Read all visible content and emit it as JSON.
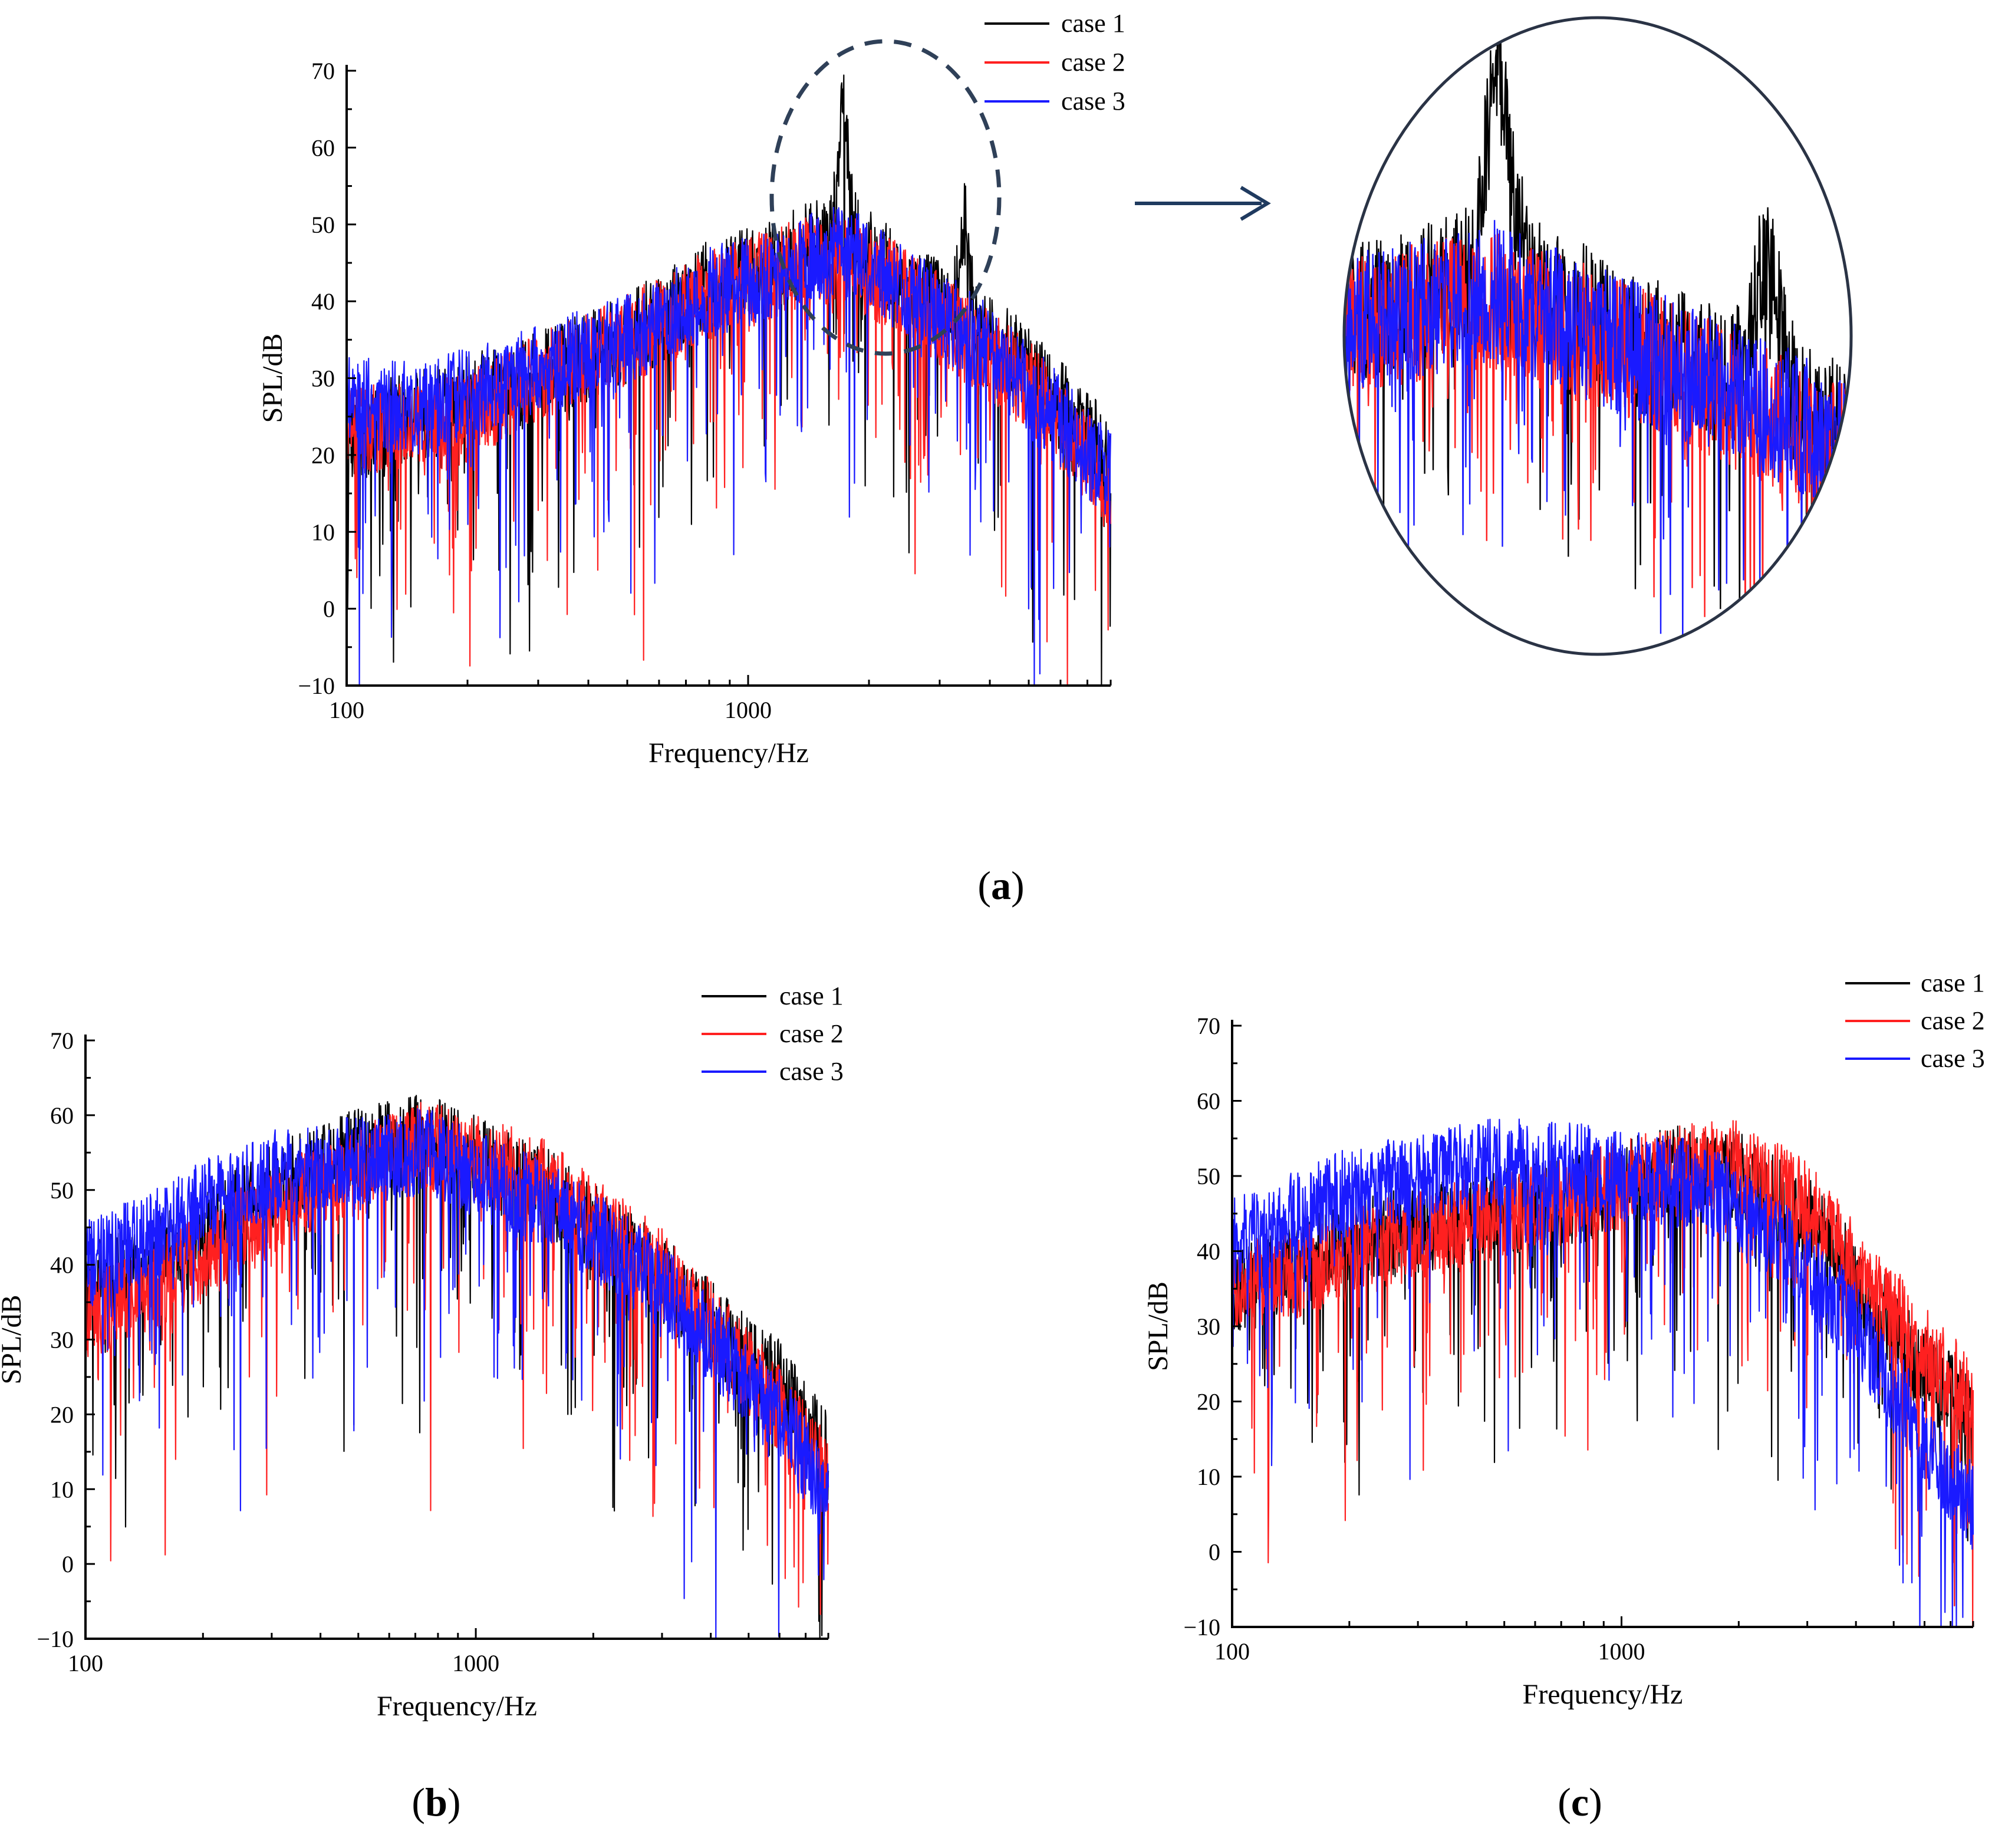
{
  "figure": {
    "panels": [
      {
        "id": "a",
        "label_open": "(",
        "letter": "a",
        "label_close": ")"
      },
      {
        "id": "b",
        "label_open": "(",
        "letter": "b",
        "label_close": ")"
      },
      {
        "id": "c",
        "label_open": "(",
        "letter": "c",
        "label_close": ")"
      }
    ],
    "zoom_arrow_icon": "arrow-right-icon"
  },
  "chart_data": [
    {
      "id": "a",
      "type": "line",
      "xscale": "log",
      "xlabel": "Frequency/Hz",
      "ylabel": "SPL/dB",
      "xlim": [
        100,
        8000
      ],
      "ylim": [
        -10,
        70
      ],
      "xticks": [
        100,
        1000
      ],
      "xtick_labels": [
        "100",
        "1000"
      ],
      "yticks": [
        -10,
        0,
        10,
        20,
        30,
        40,
        50,
        60,
        70
      ],
      "ytick_labels": [
        "−10",
        "0",
        "10",
        "20",
        "30",
        "40",
        "50",
        "60",
        "70"
      ],
      "legend_position": "top-right",
      "annotation": "dashed ellipse marks the peak region (approx. 1200–4000 Hz); enlarged view shown to the right",
      "series": [
        {
          "name": "case 1",
          "color": "#000000",
          "x": [
            100,
            150,
            200,
            300,
            500,
            800,
            1200,
            1700,
            2500,
            3500,
            5000,
            8000
          ],
          "y": [
            23,
            25,
            27,
            30,
            35,
            42,
            45,
            49,
            42,
            37,
            31,
            19
          ],
          "peaks": [
            {
              "x": 1720,
              "y": 69
            },
            {
              "x": 3450,
              "y": 52
            }
          ]
        },
        {
          "name": "case 2",
          "color": "#ff2020",
          "x": [
            100,
            150,
            200,
            300,
            500,
            800,
            1200,
            1700,
            2500,
            3500,
            5000,
            8000
          ],
          "y": [
            24,
            23,
            25,
            30,
            35,
            41,
            44,
            46,
            41,
            35,
            29,
            16
          ]
        },
        {
          "name": "case 3",
          "color": "#1a1aff",
          "x": [
            100,
            150,
            200,
            300,
            500,
            800,
            1200,
            1700,
            2500,
            3500,
            5000,
            8000
          ],
          "y": [
            27,
            26,
            28,
            31,
            35,
            41,
            44,
            47,
            41,
            36,
            29,
            17
          ]
        }
      ]
    },
    {
      "id": "b",
      "type": "line",
      "xscale": "log",
      "xlabel": "Frequency/Hz",
      "ylabel": "SPL/dB",
      "xlim": [
        100,
        8000
      ],
      "ylim": [
        -10,
        70
      ],
      "xticks": [
        100,
        1000
      ],
      "xtick_labels": [
        "100",
        "1000"
      ],
      "yticks": [
        -10,
        0,
        10,
        20,
        30,
        40,
        50,
        60,
        70
      ],
      "ytick_labels": [
        "−10",
        "0",
        "10",
        "20",
        "30",
        "40",
        "50",
        "60",
        "70"
      ],
      "legend_position": "top-right",
      "series": [
        {
          "name": "case 1",
          "color": "#000000",
          "x": [
            100,
            150,
            200,
            300,
            500,
            750,
            1000,
            1500,
            2000,
            3000,
            4000,
            5000,
            6000,
            8000
          ],
          "y": [
            37,
            40,
            44,
            50,
            55,
            57,
            54,
            50,
            45,
            38,
            32,
            27,
            24,
            14
          ]
        },
        {
          "name": "case 2",
          "color": "#ff2020",
          "x": [
            100,
            150,
            200,
            300,
            500,
            750,
            1000,
            1500,
            2000,
            3000,
            4000,
            5000,
            6000,
            8000
          ],
          "y": [
            33,
            37,
            41,
            47,
            53,
            56,
            54,
            51,
            46,
            39,
            32,
            26,
            21,
            11
          ]
        },
        {
          "name": "case 3",
          "color": "#1a1aff",
          "x": [
            100,
            150,
            200,
            300,
            500,
            750,
            1000,
            1500,
            2000,
            3000,
            4000,
            5000,
            6000,
            8000
          ],
          "y": [
            40,
            44,
            48,
            52,
            54,
            55,
            52,
            48,
            44,
            37,
            30,
            24,
            20,
            9
          ]
        }
      ]
    },
    {
      "id": "c",
      "type": "line",
      "xscale": "log",
      "xlabel": "Frequency/Hz",
      "ylabel": "SPL/dB",
      "xlim": [
        100,
        8000
      ],
      "ylim": [
        -10,
        70
      ],
      "xticks": [
        100,
        1000
      ],
      "xtick_labels": [
        "100",
        "1000"
      ],
      "yticks": [
        -10,
        0,
        10,
        20,
        30,
        40,
        50,
        60,
        70
      ],
      "ytick_labels": [
        "−10",
        "0",
        "10",
        "20",
        "30",
        "40",
        "50",
        "60",
        "70"
      ],
      "legend_position": "top-right",
      "series": [
        {
          "name": "case 1",
          "color": "#000000",
          "x": [
            100,
            150,
            200,
            300,
            500,
            800,
            1000,
            1500,
            2000,
            3000,
            4000,
            6000,
            8000
          ],
          "y": [
            35,
            38,
            41,
            43,
            45,
            47,
            49,
            51,
            50,
            44,
            36,
            24,
            18
          ]
        },
        {
          "name": "case 2",
          "color": "#ff2020",
          "x": [
            100,
            150,
            200,
            300,
            500,
            800,
            1000,
            1500,
            2000,
            3000,
            4000,
            6000,
            8000
          ],
          "y": [
            35,
            37,
            40,
            42,
            45,
            47,
            49,
            51,
            52,
            46,
            38,
            27,
            20
          ]
        },
        {
          "name": "case 3",
          "color": "#1a1aff",
          "x": [
            100,
            150,
            200,
            300,
            500,
            800,
            1000,
            1500,
            2000,
            3000,
            4000,
            6000,
            8000
          ],
          "y": [
            41,
            45,
            48,
            50,
            52,
            51,
            50,
            49,
            46,
            38,
            30,
            15,
            6
          ]
        }
      ]
    }
  ]
}
